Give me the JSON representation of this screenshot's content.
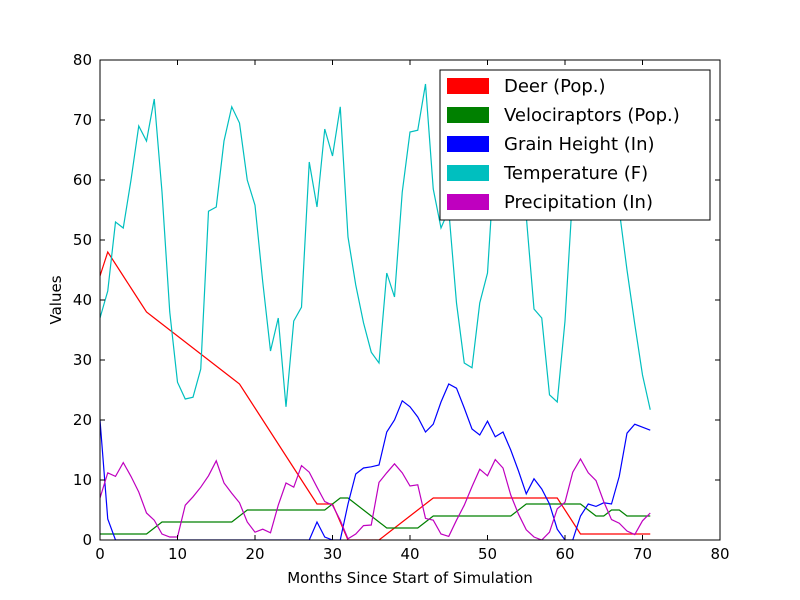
{
  "chart_data": {
    "type": "line",
    "xlabel": "Months Since Start of Simulation",
    "ylabel": "Values",
    "xlim": [
      0,
      80
    ],
    "ylim": [
      0,
      80
    ],
    "xticks": [
      "0",
      "10",
      "20",
      "30",
      "40",
      "50",
      "60",
      "70",
      "80"
    ],
    "yticks": [
      "0",
      "10",
      "20",
      "30",
      "40",
      "50",
      "60",
      "70",
      "80"
    ],
    "grid": false,
    "legend": "top-right",
    "x": [
      0,
      1,
      2,
      3,
      4,
      5,
      6,
      7,
      8,
      9,
      10,
      11,
      12,
      13,
      14,
      15,
      16,
      17,
      18,
      19,
      20,
      21,
      22,
      23,
      24,
      25,
      26,
      27,
      28,
      29,
      30,
      31,
      32,
      33,
      34,
      35,
      36,
      37,
      38,
      39,
      40,
      41,
      42,
      43,
      44,
      45,
      46,
      47,
      48,
      49,
      50,
      51,
      52,
      53,
      54,
      55,
      56,
      57,
      58,
      59,
      60,
      61,
      62,
      63,
      64,
      65,
      66,
      67,
      68,
      69,
      70,
      71
    ],
    "series": [
      {
        "name": "Deer (Pop.)",
        "color": "#ff0000",
        "values": [
          44,
          48,
          46,
          44,
          42,
          40,
          38,
          37,
          36,
          35,
          34,
          33,
          32,
          31,
          30,
          29,
          28,
          27,
          26,
          24,
          22,
          20,
          18,
          16,
          14,
          12,
          10,
          8,
          6,
          6,
          6,
          3,
          0,
          0,
          0,
          0,
          0,
          1,
          2,
          3,
          4,
          5,
          6,
          7,
          7,
          7,
          7,
          7,
          7,
          7,
          7,
          7,
          7,
          7,
          7,
          7,
          7,
          7,
          7,
          7,
          5,
          3,
          1,
          1,
          1,
          1,
          1,
          1,
          1,
          1,
          1,
          1
        ]
      },
      {
        "name": "Velociraptors (Pop.)",
        "color": "#008000",
        "values": [
          1,
          1,
          1,
          1,
          1,
          1,
          1,
          2,
          3,
          3,
          3,
          3,
          3,
          3,
          3,
          3,
          3,
          3,
          4,
          5,
          5,
          5,
          5,
          5,
          5,
          5,
          5,
          5,
          5,
          5,
          6,
          7,
          7,
          6,
          5,
          4,
          3,
          2,
          2,
          2,
          2,
          2,
          3,
          4,
          4,
          4,
          4,
          4,
          4,
          4,
          4,
          4,
          4,
          4,
          5,
          6,
          6,
          6,
          6,
          6,
          6,
          6,
          6,
          5,
          4,
          4,
          5,
          5,
          4,
          4,
          4,
          4
        ]
      },
      {
        "name": "Grain Height (In)",
        "color": "#0000ff",
        "values": [
          20,
          3.5,
          0,
          0,
          0,
          0,
          0,
          0,
          0,
          0,
          0,
          0,
          0,
          0,
          0,
          0,
          0,
          0,
          0,
          0,
          0,
          0,
          0,
          0,
          0,
          0,
          0,
          0,
          3,
          0.5,
          0,
          0,
          6,
          11,
          12,
          12.2,
          12.5,
          18,
          20,
          23.2,
          22.2,
          20.5,
          18,
          19.3,
          23,
          26,
          25.3,
          22,
          18.5,
          17.5,
          19.8,
          17.2,
          18,
          15,
          11.5,
          7.7,
          10.2,
          8.5,
          6,
          1.8,
          0,
          0,
          4,
          6,
          5.6,
          6.2,
          6,
          10.6,
          17.8,
          19.3,
          18.8,
          18.3
        ]
      },
      {
        "name": "Temperature (F)",
        "color": "#00bfbf",
        "values": [
          37,
          41.5,
          53,
          52,
          60,
          69,
          66.5,
          73.5,
          58,
          38,
          26.3,
          23.5,
          23.8,
          28.5,
          54.8,
          55.5,
          66.5,
          72.2,
          69.5,
          60,
          55.8,
          43,
          31.5,
          37,
          22.2,
          36.5,
          38.8,
          63,
          55.5,
          68.5,
          64,
          72.2,
          50.5,
          42.5,
          36.2,
          31.3,
          29.5,
          44.5,
          40.5,
          58,
          68,
          68.3,
          76,
          58.5,
          52,
          55,
          39.5,
          29.5,
          28.7,
          39.5,
          44.5,
          65,
          70,
          66,
          65.5,
          54,
          38.5,
          37,
          24.2,
          23,
          36.5,
          58,
          60,
          56,
          58,
          62,
          58,
          55,
          45,
          36,
          27.5,
          21.7
        ]
      },
      {
        "name": "Precipitation (In)",
        "color": "#bf00bf",
        "values": [
          7,
          11.2,
          10.6,
          12.9,
          10.6,
          8,
          4.5,
          3.3,
          1,
          0.5,
          0.5,
          5.8,
          7.2,
          8.8,
          10.7,
          13.2,
          9.5,
          7.8,
          6.2,
          3,
          1.3,
          1.8,
          1.2,
          5.8,
          9.5,
          8.8,
          12.4,
          11.3,
          8.8,
          6.4,
          5.8,
          3.3,
          0.2,
          1,
          2.4,
          2.5,
          9.6,
          11.2,
          12.7,
          11.2,
          9,
          9.2,
          3.6,
          3.3,
          1,
          0.6,
          3.3,
          5.8,
          8.9,
          11.8,
          10.7,
          13.4,
          12,
          7.5,
          4.3,
          1.7,
          0.5,
          0,
          1.3,
          5.2,
          6.3,
          11.3,
          13.5,
          11.2,
          9.9,
          6.4,
          3.4,
          2.8,
          1.5,
          0.9,
          3.2,
          4.5
        ]
      }
    ]
  }
}
